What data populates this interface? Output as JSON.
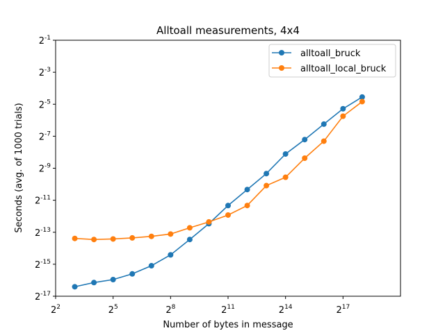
{
  "chart_data": {
    "type": "line",
    "title": "Alltoall measurements, 4x4",
    "xlabel": "Number of bytes in message",
    "ylabel": "Seconds (avg. of 1000 trials)",
    "x_scale": "log2",
    "y_scale": "log2",
    "xlim": [
      4,
      1048576
    ],
    "ylim": [
      7.62939453125e-06,
      0.5
    ],
    "x_ticks": [
      {
        "base": "2",
        "exp": "2"
      },
      {
        "base": "2",
        "exp": "5"
      },
      {
        "base": "2",
        "exp": "8"
      },
      {
        "base": "2",
        "exp": "11"
      },
      {
        "base": "2",
        "exp": "14"
      },
      {
        "base": "2",
        "exp": "17"
      }
    ],
    "y_ticks": [
      {
        "base": "2",
        "exp": "-17"
      },
      {
        "base": "2",
        "exp": "-15"
      },
      {
        "base": "2",
        "exp": "-13"
      },
      {
        "base": "2",
        "exp": "-11"
      },
      {
        "base": "2",
        "exp": "-9"
      },
      {
        "base": "2",
        "exp": "-7"
      },
      {
        "base": "2",
        "exp": "-5"
      },
      {
        "base": "2",
        "exp": "-3"
      },
      {
        "base": "2",
        "exp": "-1"
      }
    ],
    "x": [
      8,
      16,
      32,
      64,
      128,
      256,
      512,
      1024,
      2048,
      4096,
      8192,
      16384,
      32768,
      65536,
      131072,
      262144
    ],
    "series": [
      {
        "name": "alltoall_bruck",
        "color": "#1f77b4",
        "values": [
          1.15e-05,
          1.38e-05,
          1.57e-05,
          2.01e-05,
          2.86e-05,
          4.58e-05,
          8.91e-05,
          0.000177,
          0.000388,
          0.000776,
          0.00155,
          0.00362,
          0.00676,
          0.0132,
          0.0257,
          0.0427
        ]
      },
      {
        "name": "alltoall_local_bruck",
        "color": "#ff7f0e",
        "values": [
          9.33e-05,
          8.91e-05,
          9.12e-05,
          9.55e-05,
          0.000102,
          0.000113,
          0.000148,
          0.000191,
          0.000257,
          0.000389,
          0.00092,
          0.00132,
          0.00302,
          0.00631,
          0.0186,
          0.035
        ]
      }
    ],
    "legend_position": "upper-right",
    "grid": false
  }
}
